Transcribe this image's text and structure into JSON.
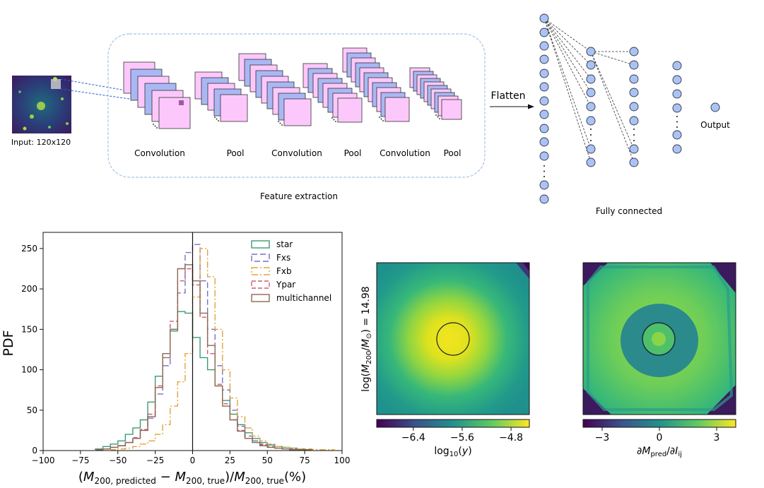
{
  "cnn": {
    "input_label": "Input: 120x120",
    "stage_labels": [
      "Convolution",
      "Pool",
      "Convolution",
      "Pool",
      "Convolution",
      "Pool"
    ],
    "box_label": "Feature extraction",
    "flatten_label": "Flatten",
    "fc_label": "Fully connected",
    "output_label": "Output"
  },
  "chart_data": [
    {
      "type": "line",
      "subtype": "step-histogram",
      "ylabel": "PDF",
      "xlabel": "(M200, predicted − M200, true)/M200, true(%)",
      "xlabel_parts": {
        "a": "(",
        "b": "M",
        "c": "200, predicted",
        "d": " − ",
        "e": "M",
        "f": "200, true",
        "g": ")/",
        "h": "M",
        "i": "200, true",
        "j": "(%)"
      },
      "xlim": [
        -100,
        100
      ],
      "ylim": [
        0,
        270
      ],
      "xticks": [
        "−100",
        "−75",
        "−50",
        "−25",
        "0",
        "25",
        "50",
        "75",
        "100"
      ],
      "xtick_values": [
        -100,
        -75,
        -50,
        -25,
        0,
        25,
        50,
        75,
        100
      ],
      "yticks": [
        "0",
        "50",
        "100",
        "150",
        "200",
        "250"
      ],
      "ytick_values": [
        0,
        50,
        100,
        150,
        200,
        250
      ],
      "legend_position": "top-right",
      "vertical_line_x": 0,
      "series": [
        {
          "name": "star",
          "color": "#3c9a73",
          "dash": "solid",
          "edges": [
            -65,
            -60,
            -55,
            -50,
            -45,
            -40,
            -35,
            -30,
            -25,
            -20,
            -15,
            -10,
            -5,
            0,
            5,
            10,
            15,
            20,
            25,
            30,
            35,
            40,
            45,
            50,
            55,
            60,
            65,
            70,
            75,
            80
          ],
          "values": [
            2,
            5,
            8,
            12,
            20,
            28,
            38,
            60,
            92,
            115,
            148,
            172,
            170,
            140,
            115,
            100,
            80,
            62,
            45,
            32,
            22,
            15,
            10,
            7,
            5,
            4,
            3,
            2,
            1
          ]
        },
        {
          "name": "Fxs",
          "color": "#7b6fc4",
          "dash": "8,4",
          "edges": [
            -65,
            -60,
            -55,
            -50,
            -45,
            -40,
            -35,
            -30,
            -25,
            -20,
            -15,
            -10,
            -5,
            0,
            5,
            10,
            15,
            20,
            25,
            30,
            35,
            40,
            45,
            50,
            55,
            60,
            65,
            70,
            75,
            80
          ],
          "values": [
            1,
            2,
            4,
            6,
            10,
            15,
            25,
            40,
            70,
            105,
            150,
            195,
            245,
            255,
            210,
            150,
            105,
            75,
            50,
            30,
            18,
            12,
            8,
            5,
            3,
            2,
            2,
            1,
            1
          ]
        },
        {
          "name": "Fxb",
          "color": "#e0a43c",
          "dash": "9,3,2,3",
          "edges": [
            -55,
            -50,
            -45,
            -40,
            -35,
            -30,
            -25,
            -20,
            -15,
            -10,
            -5,
            0,
            5,
            10,
            15,
            20,
            25,
            30,
            35,
            40,
            45,
            50,
            55,
            60,
            65,
            70,
            75,
            80,
            85,
            90,
            95
          ],
          "values": [
            1,
            2,
            3,
            5,
            8,
            12,
            20,
            32,
            55,
            85,
            120,
            190,
            250,
            215,
            150,
            100,
            65,
            42,
            28,
            18,
            12,
            8,
            5,
            4,
            3,
            2,
            2,
            1,
            1,
            1
          ]
        },
        {
          "name": "Ypar",
          "color": "#d05a78",
          "dash": "6,3",
          "edges": [
            -65,
            -60,
            -55,
            -50,
            -45,
            -40,
            -35,
            -30,
            -25,
            -20,
            -15,
            -10,
            -5,
            0,
            5,
            10,
            15,
            20,
            25,
            30,
            35,
            40,
            45,
            50,
            55,
            60,
            65,
            70,
            75,
            80
          ],
          "values": [
            1,
            2,
            4,
            6,
            10,
            16,
            26,
            45,
            80,
            115,
            160,
            210,
            225,
            205,
            165,
            120,
            82,
            58,
            38,
            25,
            15,
            10,
            7,
            4,
            3,
            2,
            1,
            1,
            1
          ]
        },
        {
          "name": "multichannel",
          "color": "#8b6a50",
          "dash": "solid",
          "edges": [
            -65,
            -60,
            -55,
            -50,
            -45,
            -40,
            -35,
            -30,
            -25,
            -20,
            -15,
            -10,
            -5,
            0,
            5,
            10,
            15,
            20,
            25,
            30,
            35,
            40,
            45,
            50,
            55,
            60,
            65,
            70,
            75,
            80
          ],
          "values": [
            1,
            2,
            4,
            6,
            10,
            15,
            25,
            42,
            78,
            120,
            150,
            225,
            230,
            210,
            170,
            130,
            80,
            55,
            38,
            24,
            15,
            10,
            6,
            4,
            3,
            2,
            1,
            1,
            1
          ]
        }
      ]
    },
    {
      "type": "heatmap",
      "ylabel_parts": {
        "a": "log(",
        "b": "M",
        "c": "200",
        "d": "/",
        "e": "M",
        "f": "⊙",
        "g": ") = 14.98"
      },
      "colorbar_label_parts": {
        "a": "log",
        "b": "10",
        "c": "(",
        "d": "y",
        "e": ")"
      },
      "colorbar_range": [
        -7.0,
        -4.5
      ],
      "colorbar_ticks": [
        "−6.4",
        "−5.6",
        "−4.8"
      ],
      "colorbar_tick_values": [
        -6.4,
        -5.6,
        -4.8
      ],
      "colormap": "viridis"
    },
    {
      "type": "heatmap",
      "colorbar_label_parts": {
        "a": "∂",
        "b": "M",
        "c": "pred",
        "d": "/∂",
        "e": "I",
        "f": "ij"
      },
      "colorbar_range": [
        -4,
        4
      ],
      "colorbar_ticks": [
        "−3",
        "0",
        "3"
      ],
      "colorbar_tick_values": [
        -3,
        0,
        3
      ],
      "colormap": "viridis"
    }
  ]
}
